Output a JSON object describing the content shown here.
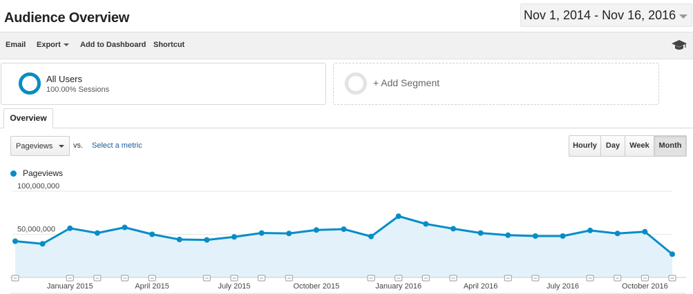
{
  "header": {
    "title": "Audience Overview",
    "date_range": "Nov 1, 2014 - Nov 16, 2016"
  },
  "toolbar": {
    "email_label": "Email",
    "export_label": "Export",
    "add_to_dashboard_label": "Add to Dashboard",
    "shortcut_label": "Shortcut",
    "right_icon": "graduation-cap-icon"
  },
  "segments": {
    "all_users": {
      "name": "All Users",
      "detail": "100.00% Sessions"
    },
    "add_segment_label": "+ Add Segment"
  },
  "tabs": [
    {
      "label": "Overview",
      "active": true
    }
  ],
  "metric_picker": {
    "selected": "Pageviews",
    "vs_label": "vs.",
    "select_metric_label": "Select a metric"
  },
  "granularity": [
    {
      "label": "Hourly",
      "active": false
    },
    {
      "label": "Day",
      "active": false
    },
    {
      "label": "Week",
      "active": false
    },
    {
      "label": "Month",
      "active": true
    }
  ],
  "colors": {
    "accent": "#058dc7",
    "fill": "#e3f1fa",
    "link": "#1a5a9a"
  },
  "chart_data": {
    "type": "area",
    "series": [
      {
        "name": "Pageviews",
        "x": [
          "Nov 2014",
          "Dec 2014",
          "Jan 2015",
          "Feb 2015",
          "Mar 2015",
          "Apr 2015",
          "May 2015",
          "Jun 2015",
          "Jul 2015",
          "Aug 2015",
          "Sep 2015",
          "Oct 2015",
          "Nov 2015",
          "Dec 2015",
          "Jan 2016",
          "Feb 2016",
          "Mar 2016",
          "Apr 2016",
          "May 2016",
          "Jun 2016",
          "Jul 2016",
          "Aug 2016",
          "Sep 2016",
          "Oct 2016",
          "Nov 2016"
        ],
        "values": [
          42000000,
          39000000,
          57000000,
          51500000,
          58000000,
          50000000,
          44000000,
          43500000,
          47000000,
          51500000,
          51000000,
          55000000,
          56000000,
          47500000,
          71000000,
          62000000,
          56500000,
          51500000,
          49000000,
          48000000,
          48000000,
          54500000,
          51000000,
          53000000,
          27000000
        ]
      }
    ],
    "x_tick_labels": [
      "January 2015",
      "April 2015",
      "July 2015",
      "October 2015",
      "January 2016",
      "April 2016",
      "July 2016",
      "October 2016"
    ],
    "x_tick_months": [
      "Jan 2015",
      "Apr 2015",
      "Jul 2015",
      "Oct 2015",
      "Jan 2016",
      "Apr 2016",
      "Jul 2016",
      "Oct 2016"
    ],
    "y_tick_labels": [
      "100,000,000",
      "50,000,000"
    ],
    "y_tick_values": [
      100000000,
      50000000
    ],
    "ylim": [
      0,
      100000000
    ],
    "grid": true,
    "legend": "top-left",
    "annotation_markers": [
      "Nov 2014",
      "Jan 2015",
      "Feb 2015",
      "Mar 2015",
      "Apr 2015",
      "Jun 2015",
      "Jul 2015",
      "Aug 2015",
      "Sep 2015",
      "Dec 2015",
      "Jan 2016",
      "Feb 2016",
      "Mar 2016",
      "May 2016",
      "Jun 2016",
      "Aug 2016",
      "Sep 2016",
      "Oct 2016",
      "Nov 2016"
    ]
  }
}
